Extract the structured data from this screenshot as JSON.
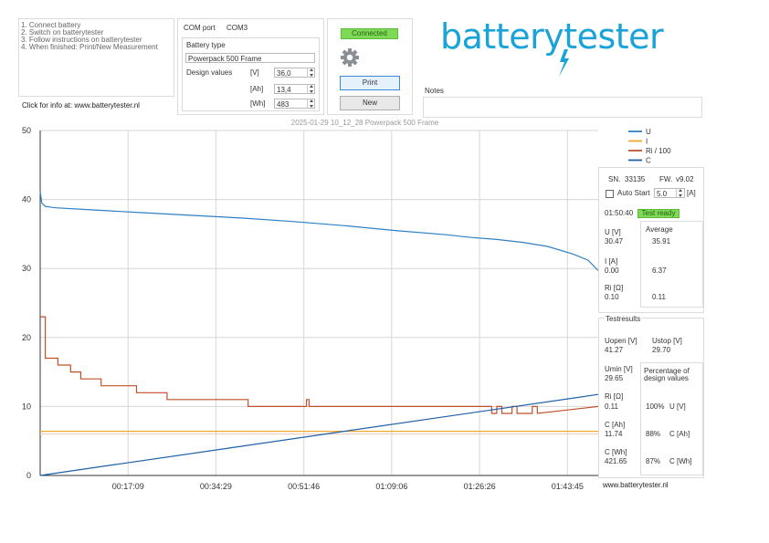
{
  "instructions": {
    "lines": [
      "1. Connect battery",
      "2. Switch on batterytester",
      "3. Follow instructions on batterytester",
      "4. When finished: Print/New Measurement"
    ],
    "click_info": "Click for info at: www.batterytester.nl"
  },
  "com": {
    "label": "COM port",
    "value": "COM3"
  },
  "battery_type": {
    "label": "Battery type",
    "value": "Powerpack 500 Frame"
  },
  "design": {
    "label": "Design values",
    "rows": [
      {
        "unit": "[V]",
        "value": "36,0"
      },
      {
        "unit": "[Ah]",
        "value": "13,4"
      },
      {
        "unit": "[Wh]",
        "value": "483"
      }
    ]
  },
  "status": {
    "connected": "Connected"
  },
  "buttons": {
    "print": "Print",
    "new": "New"
  },
  "logo": {
    "text": "batterytester",
    "color": "#1aa3d9"
  },
  "notes": {
    "label": "Notes",
    "value": ""
  },
  "chart_data": {
    "type": "line",
    "title": "2025-01-29 10_12_28 Powerpack 500 Frame",
    "x_tick_labels": [
      "00:17:09",
      "00:34:29",
      "00:51:46",
      "01:09:06",
      "01:26:26",
      "01:43:45"
    ],
    "ylim": [
      0,
      50
    ],
    "y_ticks": [
      0,
      10,
      20,
      30,
      40,
      50
    ],
    "grid": true,
    "legend_position": "top-right",
    "series": [
      {
        "name": "U",
        "color": "#2f7fc4",
        "x": [
          0,
          0.3,
          1,
          3,
          10,
          20,
          30,
          40,
          50,
          60,
          70,
          80,
          85,
          90,
          95,
          100,
          105,
          108,
          110
        ],
        "y": [
          41.2,
          39.5,
          39,
          38.8,
          38.5,
          38.1,
          37.7,
          37.3,
          36.8,
          36.2,
          35.5,
          34.9,
          34.5,
          34.2,
          33.8,
          33.2,
          32.1,
          31.2,
          29.7
        ]
      },
      {
        "name": "I",
        "color": "#f0a830",
        "x": [
          0,
          110
        ],
        "y": [
          6.4,
          6.4
        ]
      },
      {
        "name": "Ri / 100",
        "color": "#c0502a",
        "x": [
          0,
          1,
          1,
          3.5,
          3.5,
          6,
          6,
          8,
          8,
          12,
          12,
          19,
          19,
          25,
          25,
          41,
          41,
          52.5,
          52.5,
          53,
          53,
          89,
          89,
          90,
          90,
          91,
          91,
          93,
          93,
          94,
          94,
          97,
          97,
          98,
          98,
          110
        ],
        "y": [
          23,
          23,
          17,
          17,
          16,
          16,
          15,
          15,
          14,
          14,
          13,
          13,
          12,
          12,
          11,
          11,
          10,
          10,
          11,
          11,
          10,
          10,
          9,
          9,
          10,
          10,
          9,
          9,
          10,
          10,
          9,
          9,
          10,
          10,
          9,
          10
        ]
      },
      {
        "name": "C",
        "color": "#1f5fa8",
        "x": [
          0,
          110
        ],
        "y": [
          0,
          11.74
        ]
      }
    ]
  },
  "info": {
    "sn_label": "SN.",
    "sn": "33135",
    "fw_label": "FW.",
    "fw": "v9.02",
    "autostart_label": "Auto Start",
    "autostart_value": "5.0",
    "autostart_unit": "[A]",
    "elapsed": "01:50:40",
    "test_state": "Test ready",
    "average_label": "Average",
    "u_label": "U [V]",
    "u_value": "30.47",
    "u_avg": "35.91",
    "i_label": "I [A]",
    "i_value": "0.00",
    "i_avg": "6.37",
    "ri_label": "Ri [Ω]",
    "ri_value": "0.10",
    "ri_avg": "0.11"
  },
  "results": {
    "title": "Testresults",
    "uopen_label": "Uopen [V]",
    "uopen": "41.27",
    "ustop_label": "Ustop [V]",
    "ustop": "29.70",
    "umin_label": "Umin [V]",
    "umin": "29.65",
    "pct_label_1": "Percentage of",
    "pct_label_2": "design values",
    "ri_label": "Ri [Ω]",
    "ri": "0.11",
    "ri_pct": "100%",
    "ri_unit": "U [V]",
    "cah_label": "C [Ah]",
    "cah": "11.74",
    "cah_pct": "88%",
    "cah_unit": "C [Ah]",
    "cwh_label": "C [Wh]",
    "cwh": "421.65",
    "cwh_pct": "87%",
    "cwh_unit": "C [Wh]"
  },
  "footer": {
    "website": "www.batterytester.nl"
  }
}
